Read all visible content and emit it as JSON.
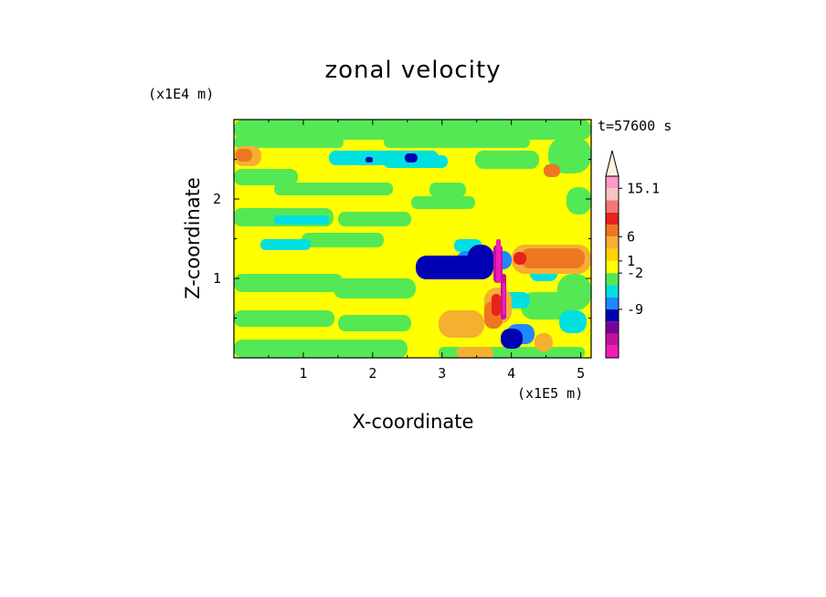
{
  "chart_data": {
    "type": "heatmap",
    "title": "zonal velocity",
    "xlabel": "X-coordinate",
    "ylabel": "Z-coordinate",
    "x_multiplier": "(x1E5 m)",
    "y_multiplier": "(x1E4 m)",
    "time_label": "t=57600 s",
    "x_range": [
      0,
      5.15
    ],
    "y_range": [
      0,
      3.0
    ],
    "x_ticks": [
      "1",
      "2",
      "3",
      "4",
      "5"
    ],
    "x_tick_values": [
      1,
      2,
      3,
      4,
      5
    ],
    "y_ticks": [
      "1",
      "2"
    ],
    "y_tick_values": [
      1,
      2
    ],
    "colorbar": {
      "labels": [
        "15.1",
        "6",
        "1",
        "-2",
        "-9"
      ],
      "colors": [
        "#ff99c8",
        "#f8c4c4",
        "#f07878",
        "#e8221c",
        "#ee7722",
        "#f6b030",
        "#ffd200",
        "#ffff00",
        "#55e855",
        "#00e0e0",
        "#1f88ff",
        "#0000b4",
        "#7a009a",
        "#c4119c",
        "#f21cb8"
      ],
      "extend": "max"
    },
    "field_colors": {
      "base": "#ffff00",
      "green": "#55e855",
      "cyan": "#00e0e0",
      "blue": "#1f88ff",
      "navy": "#0000b4",
      "orange": "#f6b030",
      "dark_orange": "#ee7722",
      "red": "#e8221c",
      "magenta": "#c4119c",
      "pink": "#f21cb8"
    }
  }
}
